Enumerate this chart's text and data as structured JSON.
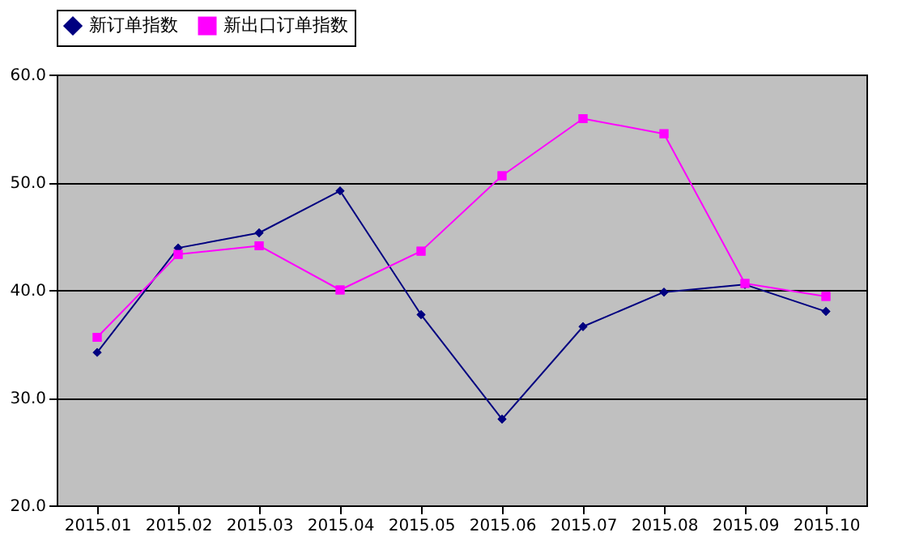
{
  "chart_data": {
    "type": "line",
    "categories": [
      "2015.01",
      "2015.02",
      "2015.03",
      "2015.04",
      "2015.05",
      "2015.06",
      "2015.07",
      "2015.08",
      "2015.09",
      "2015.10"
    ],
    "series": [
      {
        "name": "新订单指数",
        "color": "#000080",
        "marker": "diamond",
        "values": [
          34.2,
          43.9,
          45.3,
          49.2,
          37.7,
          28.0,
          36.6,
          39.8,
          40.5,
          38.0
        ]
      },
      {
        "name": "新出口订单指数",
        "color": "#ff00ff",
        "marker": "square",
        "values": [
          35.6,
          43.3,
          44.1,
          40.0,
          43.6,
          50.6,
          55.9,
          54.5,
          40.6,
          39.4
        ]
      }
    ],
    "ylim": [
      20,
      60
    ],
    "yticks": [
      {
        "value": 20,
        "label": "20.0"
      },
      {
        "value": 30,
        "label": "30.0"
      },
      {
        "value": 40,
        "label": "40.0"
      },
      {
        "value": 50,
        "label": "50.0"
      },
      {
        "value": 60,
        "label": "60.0"
      }
    ],
    "grid": "y",
    "legend": "top",
    "line_style": "solid"
  }
}
